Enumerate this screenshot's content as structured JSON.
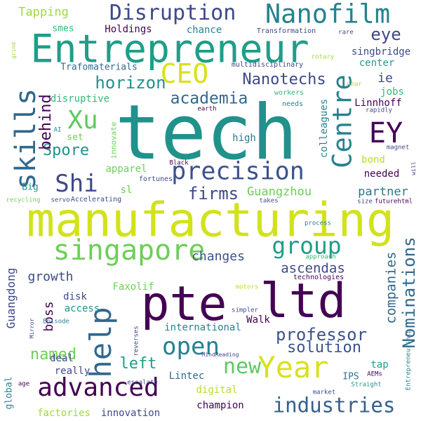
{
  "words": [
    {
      "text": "tech",
      "color": "#21918c"
    },
    {
      "text": "manufacturing",
      "color": "#d2e21b"
    },
    {
      "text": "pte",
      "color": "#440154"
    },
    {
      "text": "ltd",
      "color": "#440154"
    },
    {
      "text": "Entrepreneur",
      "color": "#1f9e89"
    },
    {
      "text": "Nanofilm",
      "color": "#26828e"
    },
    {
      "text": "singapore",
      "color": "#6ece58"
    },
    {
      "text": "Year",
      "color": "#d8e219"
    },
    {
      "text": "help",
      "color": "#31688e"
    },
    {
      "text": "precision",
      "color": "#3b528b"
    },
    {
      "text": "Disruption",
      "color": "#3e4989"
    },
    {
      "text": "skills",
      "color": "#31688e"
    },
    {
      "text": "advanced",
      "color": "#440154"
    },
    {
      "text": "Centre",
      "color": "#26828e"
    },
    {
      "text": "CEO",
      "color": "#d8e219"
    },
    {
      "text": "EY",
      "color": "#440154"
    },
    {
      "text": "Xu",
      "color": "#5ec962"
    },
    {
      "text": "Shi",
      "color": "#3e4989"
    },
    {
      "text": "group",
      "color": "#1f9e89"
    },
    {
      "text": "open",
      "color": "#26828e"
    },
    {
      "text": "new",
      "color": "#5ec962"
    },
    {
      "text": "industries",
      "color": "#355f8d"
    },
    {
      "text": "Nanotechs",
      "color": "#3e4989"
    },
    {
      "text": "academia",
      "color": "#31688e"
    },
    {
      "text": "horizon",
      "color": "#21918c"
    },
    {
      "text": "eye",
      "color": "#3e4989"
    },
    {
      "text": "firms",
      "color": "#3e4989"
    },
    {
      "text": "Spore",
      "color": "#21918c"
    },
    {
      "text": "behind",
      "color": "#440154"
    },
    {
      "text": "Nominations",
      "color": "#31688e"
    },
    {
      "text": "professor",
      "color": "#3b528b"
    },
    {
      "text": "solution",
      "color": "#3b528b"
    },
    {
      "text": "named",
      "color": "#6ece58"
    },
    {
      "text": "left",
      "color": "#1f9e89"
    },
    {
      "text": "changes",
      "color": "#3b528b"
    },
    {
      "text": "growth",
      "color": "#3e4989"
    },
    {
      "text": "boss",
      "color": "#440154"
    },
    {
      "text": "ascendas",
      "color": "#3e4989"
    },
    {
      "text": "companies",
      "color": "#31688e"
    },
    {
      "text": "Guangdong",
      "color": "#3e4989"
    },
    {
      "text": "Guangzhou",
      "color": "#6ece58"
    },
    {
      "text": "partner",
      "color": "#2a788e"
    },
    {
      "text": "Tapping",
      "color": "#a0da39"
    },
    {
      "text": "smes",
      "color": "#35b779"
    },
    {
      "text": "Holdings",
      "color": "#440154"
    },
    {
      "text": "chance",
      "color": "#26828e"
    },
    {
      "text": "singbridge",
      "color": "#3e4989"
    },
    {
      "text": "center",
      "color": "#1f9e89"
    },
    {
      "text": "ie",
      "color": "#3e4989"
    },
    {
      "text": "jobs",
      "color": "#35b779"
    },
    {
      "text": "Linnhoff",
      "color": "#440154"
    },
    {
      "text": "colleagues",
      "color": "#26828e"
    },
    {
      "text": "bond",
      "color": "#b5de2b"
    },
    {
      "text": "needed",
      "color": "#440154"
    },
    {
      "text": "high",
      "color": "#2a788e"
    },
    {
      "text": "set",
      "color": "#6ece58"
    },
    {
      "text": "disruptive",
      "color": "#35b779"
    },
    {
      "text": "Trafomaterials",
      "color": "#31688e"
    },
    {
      "text": "apparel",
      "color": "#6ece58"
    },
    {
      "text": "sl",
      "color": "#6ece58"
    },
    {
      "text": "Big",
      "color": "#21918c"
    },
    {
      "text": "disk",
      "color": "#3e4989"
    },
    {
      "text": "access",
      "color": "#21918c"
    },
    {
      "text": "Walk",
      "color": "#440154"
    },
    {
      "text": "Faxolif",
      "color": "#6ece58"
    },
    {
      "text": "international",
      "color": "#26828e"
    },
    {
      "text": "deal",
      "color": "#3e4989"
    },
    {
      "text": "really",
      "color": "#3e4989"
    },
    {
      "text": "Lintec",
      "color": "#31688e"
    },
    {
      "text": "digital",
      "color": "#b5de2b"
    },
    {
      "text": "champion",
      "color": "#440154"
    },
    {
      "text": "factories",
      "color": "#a0da39"
    },
    {
      "text": "innovation",
      "color": "#3e4989"
    },
    {
      "text": "tap",
      "color": "#1f9e89"
    },
    {
      "text": "IPS",
      "color": "#2a788e"
    },
    {
      "text": "global",
      "color": "#26828e"
    },
    {
      "text": "Transformation",
      "color": "#3e4989"
    },
    {
      "text": "multidisciplinary",
      "color": "#3e4989"
    },
    {
      "text": "rare",
      "color": "#3e4989"
    },
    {
      "text": "rotary",
      "color": "#a0da39"
    },
    {
      "text": "grind",
      "color": "#a0da39"
    },
    {
      "text": "workers",
      "color": "#35b779"
    },
    {
      "text": "needs",
      "color": "#26828e"
    },
    {
      "text": "rapidly",
      "color": "#3e4989"
    },
    {
      "text": "near",
      "color": "#b5de2b"
    },
    {
      "text": "earth",
      "color": "#440154"
    },
    {
      "text": "AI",
      "color": "#26828e"
    },
    {
      "text": "innovate",
      "color": "#6ece58"
    },
    {
      "text": "magnet",
      "color": "#3e4989"
    },
    {
      "text": "will",
      "color": "#3e4989"
    },
    {
      "text": "Black",
      "color": "#440154"
    },
    {
      "text": "fortunes",
      "color": "#3e4989"
    },
    {
      "text": "Accelerating",
      "color": "#3e4989"
    },
    {
      "text": "servo",
      "color": "#3e4989"
    },
    {
      "text": "recycling",
      "color": "#6ece58"
    },
    {
      "text": "takes",
      "color": "#3e4989"
    },
    {
      "text": "size",
      "color": "#3e4989"
    },
    {
      "text": "futurehtml",
      "color": "#440154"
    },
    {
      "text": "process",
      "color": "#26828e"
    },
    {
      "text": "approach",
      "color": "#35b779"
    },
    {
      "text": "technologies",
      "color": "#440154"
    },
    {
      "text": "motors",
      "color": "#b5de2b"
    },
    {
      "text": "simpler",
      "color": "#3e4989"
    },
    {
      "text": "Episode",
      "color": "#26828e"
    },
    {
      "text": "Mirror",
      "color": "#3e4989"
    },
    {
      "text": "reverses",
      "color": "#3e4989"
    },
    {
      "text": "MindReading",
      "color": "#3e4989"
    },
    {
      "text": "Entrepreneurship",
      "color": "#26828e"
    },
    {
      "text": "escalate",
      "color": "#3e4989"
    },
    {
      "text": "age",
      "color": "#440154"
    },
    {
      "text": "market",
      "color": "#3e4989"
    },
    {
      "text": "AEMs",
      "color": "#440154"
    },
    {
      "text": "Straight",
      "color": "#21918c"
    }
  ]
}
